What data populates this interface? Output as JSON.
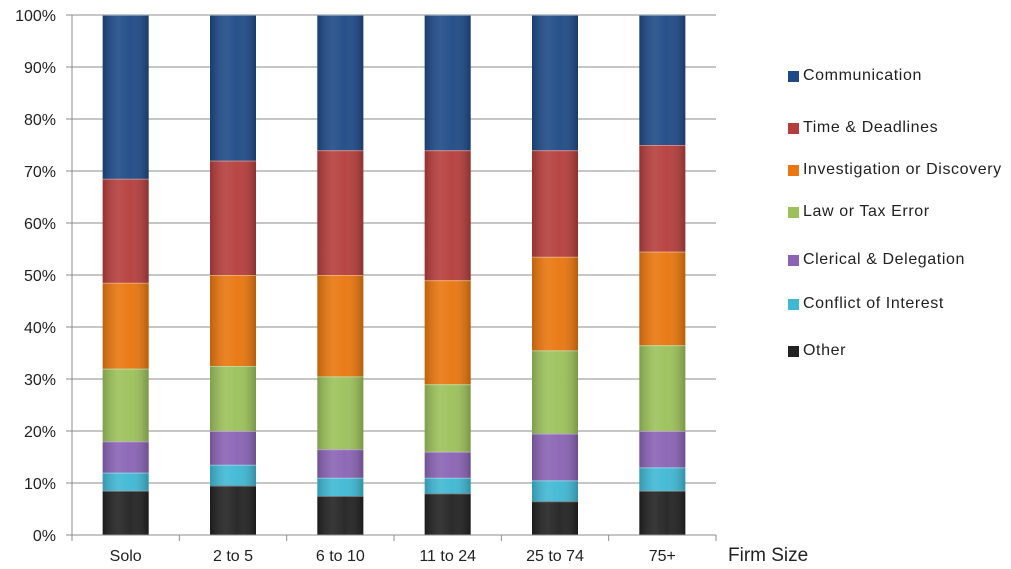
{
  "chart_data": {
    "type": "bar",
    "stacked": true,
    "title": "",
    "xlabel": "Firm Size",
    "ylabel": "",
    "ylim": [
      0,
      100
    ],
    "yticks": [
      "0%",
      "10%",
      "20%",
      "30%",
      "40%",
      "50%",
      "60%",
      "70%",
      "80%",
      "90%",
      "100%"
    ],
    "grid": true,
    "legend_position": "right",
    "categories": [
      "Solo",
      "2 to 5",
      "6 to 10",
      "11 to 24",
      "25 to 74",
      "75+"
    ],
    "series": [
      {
        "name": "Other",
        "color": "#222222",
        "values": [
          8.5,
          9.5,
          7.5,
          8.0,
          6.5,
          8.5
        ]
      },
      {
        "name": "Conflict of Interest",
        "color": "#3fb8d4",
        "values": [
          3.5,
          4.0,
          3.5,
          3.0,
          4.0,
          4.5
        ]
      },
      {
        "name": "Clerical & Delegation",
        "color": "#8a63b5",
        "values": [
          6.0,
          6.5,
          5.5,
          5.0,
          9.0,
          7.0
        ]
      },
      {
        "name": "Law or Tax Error",
        "color": "#9cc15a",
        "values": [
          14.0,
          12.5,
          14.0,
          13.0,
          16.0,
          16.5
        ]
      },
      {
        "name": "Investigation or Discovery",
        "color": "#e9760e",
        "values": [
          16.5,
          17.5,
          19.5,
          20.0,
          18.0,
          18.0
        ]
      },
      {
        "name": "Time & Deadlines",
        "color": "#b53e3c",
        "values": [
          20.0,
          22.0,
          24.0,
          25.0,
          20.5,
          20.5
        ]
      },
      {
        "name": "Communication",
        "color": "#1e4a87",
        "values": [
          31.5,
          28.0,
          26.0,
          26.0,
          26.0,
          25.0
        ]
      }
    ],
    "legend_order": [
      "Communication",
      "Time & Deadlines",
      "Investigation or Discovery",
      "Law or Tax Error",
      "Clerical & Delegation",
      "Conflict of Interest",
      "Other"
    ]
  }
}
